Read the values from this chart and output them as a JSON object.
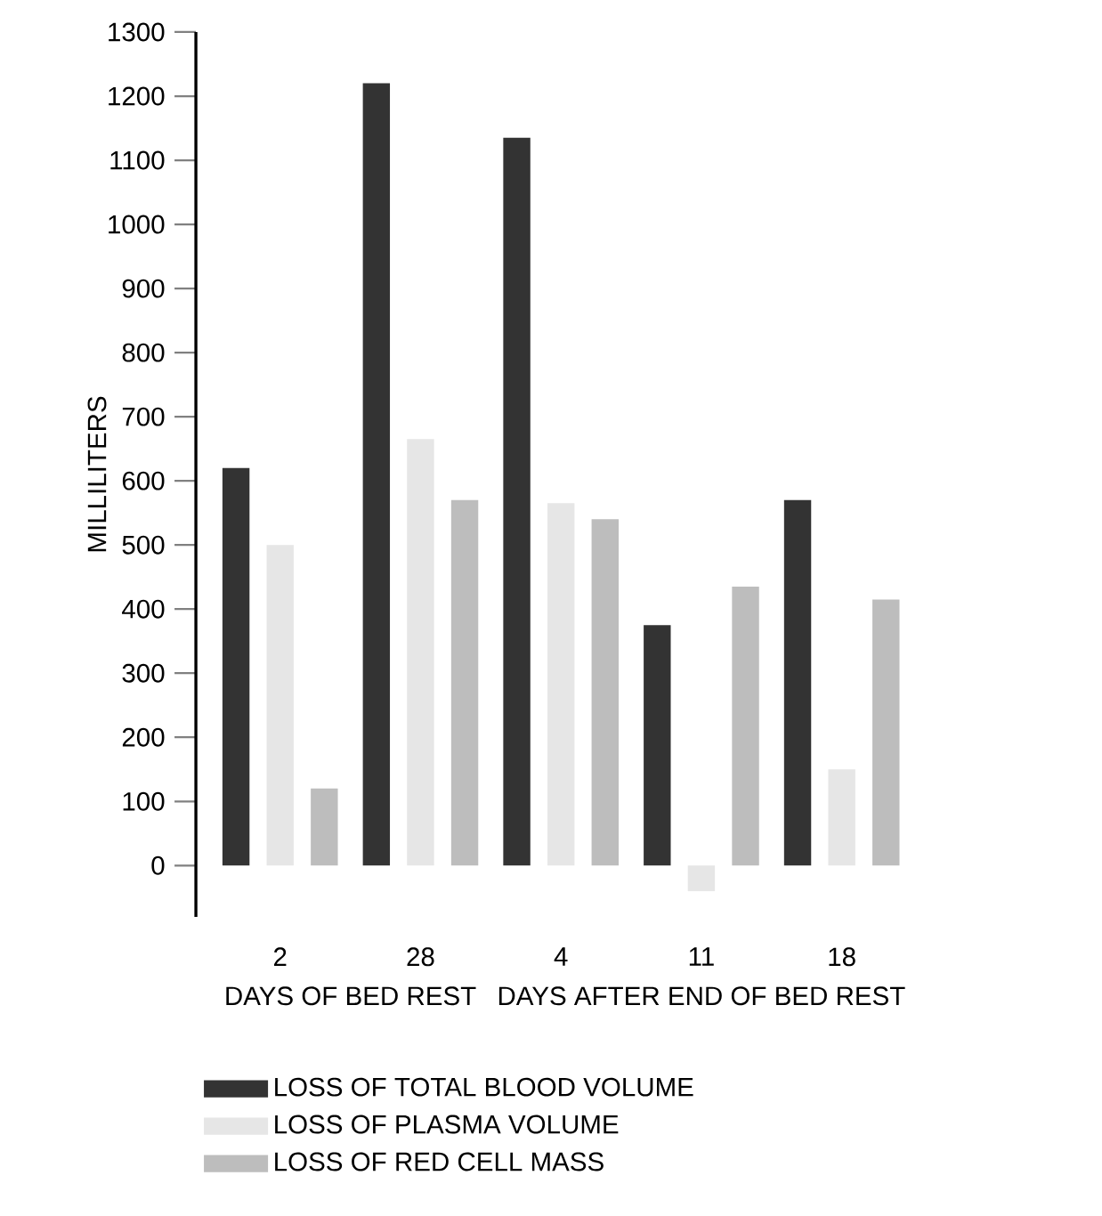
{
  "chart_data": {
    "type": "bar",
    "ylabel": "MILLILITERS",
    "categories": [
      "2",
      "28",
      "4",
      "11",
      "18"
    ],
    "series": [
      {
        "name": "LOSS OF TOTAL BLOOD VOLUME",
        "color": "#333333",
        "values": [
          620,
          1220,
          1135,
          375,
          570
        ]
      },
      {
        "name": "LOSS OF PLASMA VOLUME",
        "color": "#e6e6e6",
        "values": [
          500,
          665,
          565,
          -40,
          150
        ]
      },
      {
        "name": "LOSS OF RED CELL MASS",
        "color": "#bdbdbd",
        "values": [
          120,
          570,
          540,
          435,
          415
        ]
      }
    ],
    "ylim": [
      -80,
      1300
    ],
    "yticks": [
      0,
      100,
      200,
      300,
      400,
      500,
      600,
      700,
      800,
      900,
      1000,
      1100,
      1200,
      1300
    ],
    "annotations": [
      "DAYS OF BED REST",
      "DAYS AFTER END OF BED REST"
    ],
    "legend": "bottom",
    "grid": false
  }
}
